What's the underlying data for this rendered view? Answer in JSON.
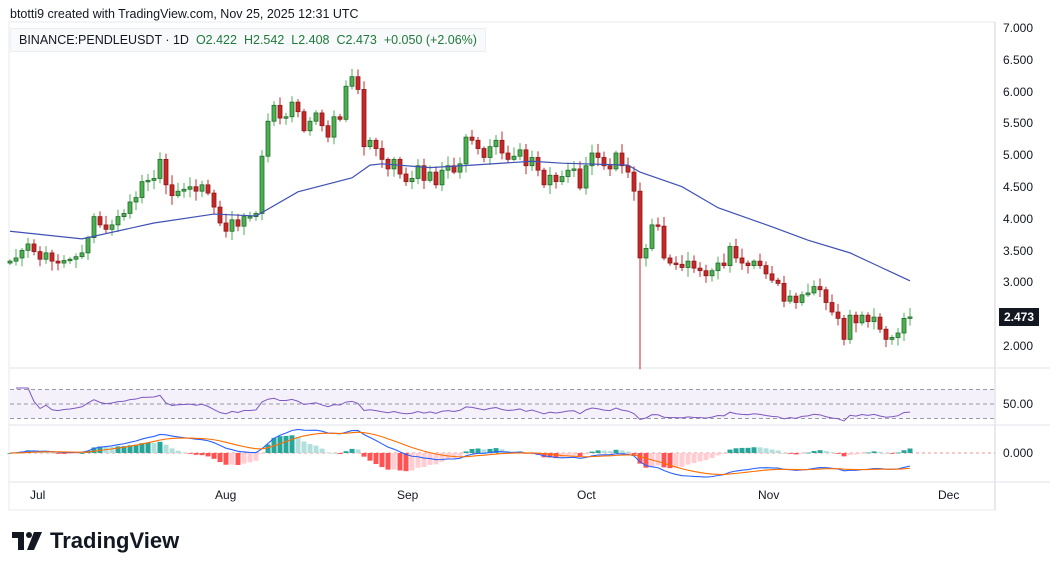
{
  "header": {
    "credit": "btotti9 created with TradingView.com, Nov 25, 2025 12:31 UTC",
    "symbol": "BINANCE:PENDLEUSDT · 1D",
    "open": "O2.422",
    "high": "H2.542",
    "low": "L2.408",
    "close": "C2.473",
    "change": "+0.050 (+2.06%)"
  },
  "logo": {
    "text": "TradingView"
  },
  "colors": {
    "up": "#4caf50",
    "down": "#c62828",
    "ma": "#3f51b5",
    "rsi": "#7e57c2",
    "macd": "#2962ff",
    "signal": "#ff6d00",
    "hist_up": "#26a69a",
    "hist_down": "#ff5252"
  },
  "chart_data": {
    "type": "candlestick",
    "title": "",
    "interval": "1D",
    "price_axis": {
      "ticks": [
        "7.000",
        "6.500",
        "6.000",
        "5.500",
        "5.000",
        "4.500",
        "4.000",
        "3.500",
        "3.000",
        "2.000"
      ],
      "range": [
        1.55,
        7.0
      ]
    },
    "last_price": "2.473",
    "time_axis": {
      "ticks": [
        "Jul",
        "Aug",
        "Sep",
        "Oct",
        "Nov",
        "Dec"
      ]
    },
    "closes": [
      3.35,
      3.4,
      3.52,
      3.62,
      3.5,
      3.38,
      3.48,
      3.35,
      3.32,
      3.36,
      3.38,
      3.42,
      3.48,
      3.72,
      4.05,
      3.92,
      3.85,
      3.92,
      4.05,
      4.1,
      4.28,
      4.35,
      4.6,
      4.62,
      4.65,
      4.95,
      4.55,
      4.38,
      4.45,
      4.48,
      4.52,
      4.45,
      4.55,
      4.42,
      4.2,
      3.95,
      3.82,
      4.0,
      3.9,
      4.05,
      4.05,
      4.1,
      5.0,
      5.55,
      5.8,
      5.6,
      5.62,
      5.85,
      5.7,
      5.4,
      5.55,
      5.68,
      5.48,
      5.3,
      5.62,
      5.58,
      6.1,
      6.25,
      6.05,
      5.15,
      5.25,
      5.12,
      4.95,
      4.8,
      4.95,
      4.72,
      4.6,
      4.65,
      4.85,
      4.62,
      4.75,
      4.55,
      4.78,
      4.85,
      4.75,
      4.88,
      5.3,
      5.25,
      5.12,
      4.98,
      5.15,
      5.25,
      5.05,
      4.95,
      5.0,
      5.1,
      4.85,
      4.98,
      4.78,
      4.55,
      4.7,
      4.6,
      4.68,
      4.78,
      4.8,
      4.5,
      4.85,
      5.05,
      4.98,
      4.85,
      4.8,
      5.05,
      4.85,
      4.75,
      4.45,
      3.4,
      3.55,
      3.92,
      3.9,
      3.4,
      3.32,
      3.3,
      3.25,
      3.35,
      3.24,
      3.2,
      3.12,
      3.2,
      3.32,
      3.28,
      3.58,
      3.4,
      3.32,
      3.28,
      3.35,
      3.28,
      3.15,
      3.05,
      3.0,
      2.72,
      2.8,
      2.7,
      2.82,
      2.85,
      2.95,
      2.9,
      2.7,
      2.55,
      2.45,
      2.12,
      2.5,
      2.38,
      2.5,
      2.4,
      2.47,
      2.28,
      2.12,
      2.15,
      2.22,
      2.45,
      2.473
    ],
    "notable_lows": {
      "105": 1.65
    },
    "moving_average": [
      [
        0,
        3.82
      ],
      [
        12,
        3.7
      ],
      [
        24,
        3.95
      ],
      [
        34,
        4.09
      ],
      [
        41,
        4.06
      ],
      [
        48,
        4.44
      ],
      [
        57,
        4.66
      ],
      [
        60,
        4.86
      ],
      [
        62,
        4.88
      ],
      [
        70,
        4.82
      ],
      [
        77,
        4.86
      ],
      [
        87,
        4.92
      ],
      [
        92,
        4.89
      ],
      [
        103,
        4.86
      ],
      [
        105,
        4.75
      ],
      [
        112,
        4.52
      ],
      [
        118,
        4.19
      ],
      [
        127,
        3.89
      ],
      [
        133,
        3.68
      ],
      [
        140,
        3.48
      ],
      [
        145,
        3.26
      ],
      [
        150,
        3.04
      ]
    ],
    "rsi": {
      "axis_tick": "50.00",
      "bands": [
        30,
        70
      ]
    },
    "macd": {
      "axis_tick": "0.000"
    }
  }
}
